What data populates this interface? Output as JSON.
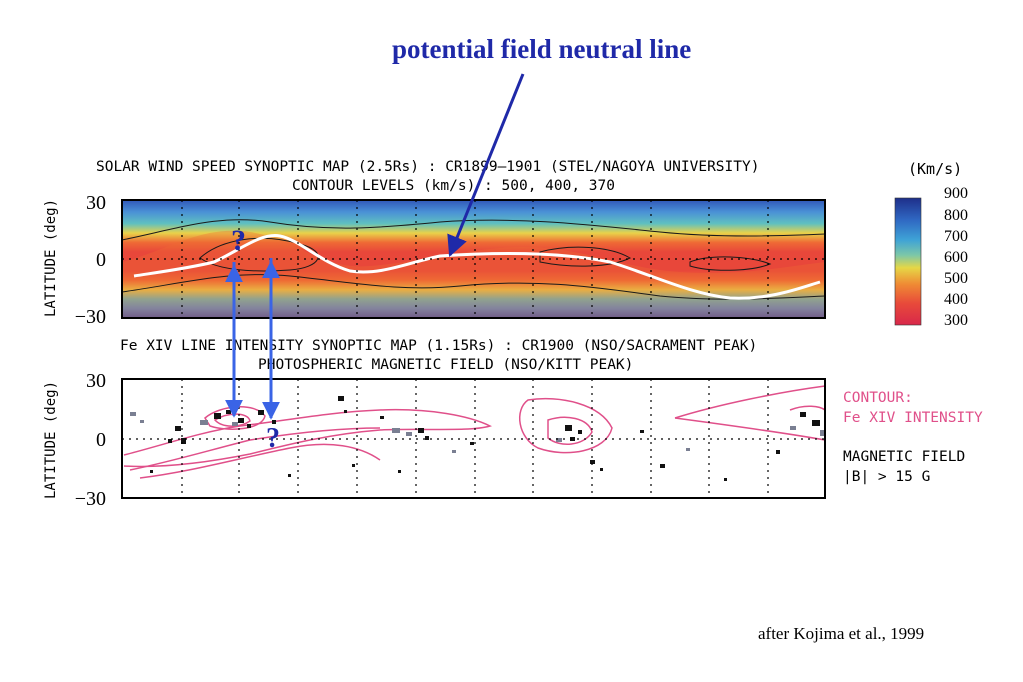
{
  "annotation": {
    "title": "potential field neutral line",
    "question_mark": "?",
    "credit": "after Kojima et al., 1999"
  },
  "top_panel": {
    "title_line1": "SOLAR WIND SPEED SYNOPTIC MAP (2.5Rs) : CR1899–1901 (STEL/NAGOYA UNIVERSITY)",
    "title_line2": "CONTOUR LEVELS (km/s) : 500, 400, 370",
    "ylabel": "LATITUDE (deg)",
    "yticks": [
      "30",
      "0",
      "−30"
    ],
    "colorbar": {
      "title": "(Km/s)",
      "labels": [
        "900",
        "800",
        "700",
        "600",
        "500",
        "400",
        "300"
      ]
    }
  },
  "bottom_panel": {
    "title_line1": "Fe XIV LINE INTENSITY SYNOPTIC MAP (1.15Rs) : CR1900 (NSO/SACRAMENT PEAK)",
    "title_line2": "PHOTOSPHERIC MAGNETIC FIELD (NSO/KITT PEAK)",
    "ylabel": "LATITUDE (deg)",
    "yticks": [
      "30",
      "0",
      "−30"
    ],
    "legend_contour_line1": "CONTOUR:",
    "legend_contour_line2": "Fe XIV INTENSITY",
    "legend_field_line1": "MAGNETIC FIELD",
    "legend_field_line2": "|B| > 15 G"
  },
  "colors": {
    "annotation_blue": "#1f29a8",
    "arrow_blue": "#3a64e6",
    "contour_pink": "#e0508a",
    "slow_wind_red": "#e8473a",
    "fast_wind_blue": "#2d5fb8"
  }
}
